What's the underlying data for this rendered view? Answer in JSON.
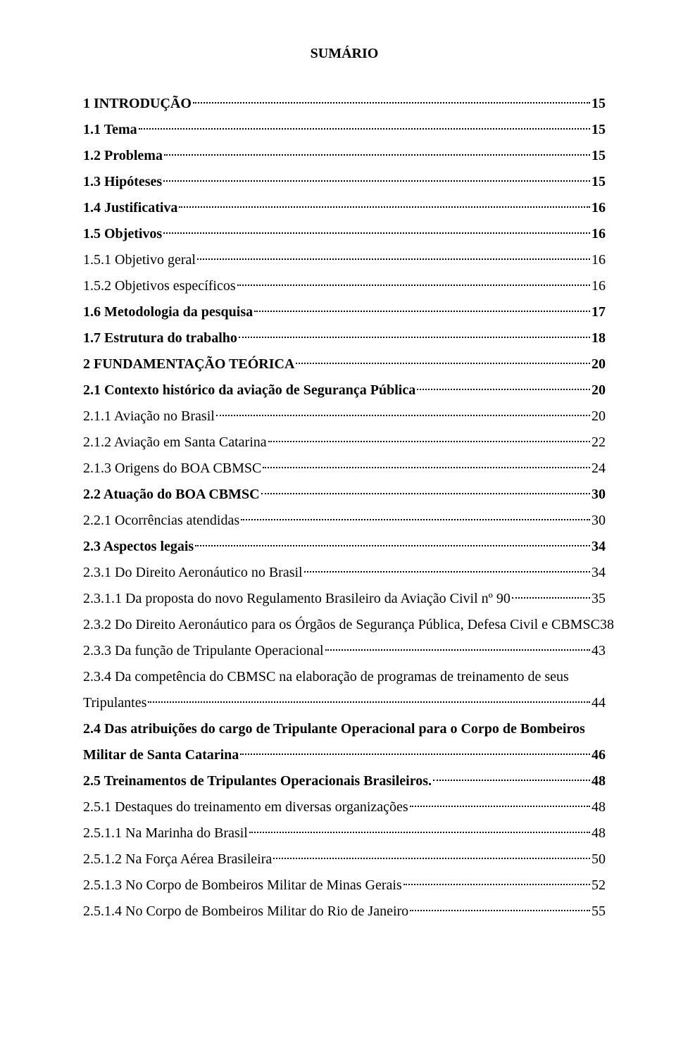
{
  "title": "SUMÁRIO",
  "fontFamily": "Times New Roman",
  "fontSizePt": 12,
  "entries": [
    {
      "label": "1 INTRODUÇÃO",
      "page": "15",
      "bold": true
    },
    {
      "label": "1.1 Tema",
      "page": "15",
      "bold": true
    },
    {
      "label": "1.2 Problema",
      "page": "15",
      "bold": true
    },
    {
      "label": "1.3 Hipóteses",
      "page": "15",
      "bold": true
    },
    {
      "label": "1.4 Justificativa",
      "page": "16",
      "bold": true
    },
    {
      "label": "1.5 Objetivos",
      "page": "16",
      "bold": true
    },
    {
      "label": "1.5.1 Objetivo geral",
      "page": "16",
      "bold": false
    },
    {
      "label": "1.5.2 Objetivos específicos",
      "page": "16",
      "bold": false
    },
    {
      "label": "1.6 Metodologia da pesquisa",
      "page": "17",
      "bold": true
    },
    {
      "label": "1.7 Estrutura do trabalho",
      "page": "18",
      "bold": true
    },
    {
      "label": "2 FUNDAMENTAÇÃO TEÓRICA",
      "page": "20",
      "bold": true
    },
    {
      "label": "2.1 Contexto histórico da aviação de Segurança Pública",
      "page": "20",
      "bold": true
    },
    {
      "label": "2.1.1 Aviação no Brasil",
      "page": "20",
      "bold": false
    },
    {
      "label": "2.1.2 Aviação em Santa Catarina",
      "page": "22",
      "bold": false
    },
    {
      "label": "2.1.3 Origens do BOA CBMSC",
      "page": "24",
      "bold": false
    },
    {
      "label": "2.2 Atuação do BOA CBMSC",
      "page": "30",
      "bold": true
    },
    {
      "label": "2.2.1 Ocorrências atendidas",
      "page": "30",
      "bold": false
    },
    {
      "label": "2.3 Aspectos legais",
      "page": "34",
      "bold": true
    },
    {
      "label": "2.3.1 Do Direito Aeronáutico no Brasil",
      "page": "34",
      "bold": false
    },
    {
      "label": "2.3.1.1 Da proposta do novo Regulamento Brasileiro da Aviação Civil nº 90",
      "page": "35",
      "bold": false
    },
    {
      "label": "2.3.2 Do Direito Aeronáutico para os Órgãos de Segurança Pública, Defesa Civil e CBMSC",
      "page": "38",
      "bold": false,
      "noDots": true
    },
    {
      "label": "2.3.3 Da função de Tripulante Operacional",
      "page": "43",
      "bold": false
    },
    {
      "multiline": true,
      "bold": false,
      "lines": [
        "2.3.4 Da competência do CBMSC na elaboração de programas de treinamento de seus"
      ],
      "lastLead": "Tripulantes",
      "page": "44"
    },
    {
      "multiline": true,
      "bold": true,
      "lines": [
        "2.4 Das atribuições do cargo de Tripulante Operacional para o Corpo de Bombeiros"
      ],
      "lastLead": "Militar de Santa Catarina",
      "page": "46"
    },
    {
      "label": "2.5 Treinamentos de Tripulantes Operacionais Brasileiros.",
      "page": "48",
      "bold": true
    },
    {
      "label": "2.5.1 Destaques do treinamento em diversas organizações",
      "page": "48",
      "bold": false
    },
    {
      "label": "2.5.1.1 Na Marinha do Brasil",
      "page": "48",
      "bold": false
    },
    {
      "label": "2.5.1.2 Na Força Aérea Brasileira",
      "page": "50",
      "bold": false
    },
    {
      "label": "2.5.1.3 No Corpo de Bombeiros Militar de Minas Gerais",
      "page": "52",
      "bold": false
    },
    {
      "label": "2.5.1.4 No Corpo de Bombeiros Militar do Rio de Janeiro",
      "page": "55",
      "bold": false
    }
  ]
}
